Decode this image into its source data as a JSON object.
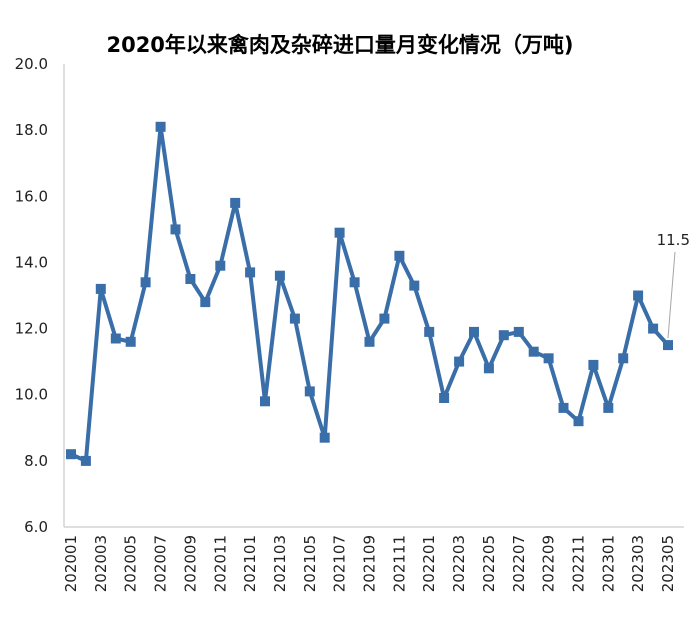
{
  "chart_data": {
    "type": "line",
    "title": "2020年以来禽肉及杂碎进口量月变化情况（万吨)",
    "xlabel": "",
    "ylabel": "",
    "ylim": [
      6.0,
      20.0
    ],
    "yticks": [
      "6.0",
      "8.0",
      "10.0",
      "12.0",
      "14.0",
      "16.0",
      "18.0",
      "20.0"
    ],
    "grid": false,
    "legend": "none",
    "color": "#3a6ea8",
    "marker": "square",
    "categories": [
      "202001",
      "202002",
      "202003",
      "202004",
      "202005",
      "202006",
      "202007",
      "202008",
      "202009",
      "202010",
      "202011",
      "202012",
      "202101",
      "202102",
      "202103",
      "202104",
      "202105",
      "202106",
      "202107",
      "202108",
      "202109",
      "202110",
      "202111",
      "202112",
      "202201",
      "202202",
      "202203",
      "202204",
      "202205",
      "202206",
      "202207",
      "202208",
      "202209",
      "202210",
      "202211",
      "202212",
      "202301",
      "202302",
      "202303",
      "202304",
      "202305"
    ],
    "tick_labels": [
      "202001",
      "",
      "202003",
      "",
      "202005",
      "",
      "202007",
      "",
      "202009",
      "",
      "202011",
      "",
      "202101",
      "",
      "202103",
      "",
      "202105",
      "",
      "202107",
      "",
      "202109",
      "",
      "202111",
      "",
      "202201",
      "",
      "202203",
      "",
      "202205",
      "",
      "202207",
      "",
      "202209",
      "",
      "202211",
      "",
      "202301",
      "",
      "202303",
      "",
      "202305"
    ],
    "series": [
      {
        "values": [
          8.2,
          8.0,
          13.2,
          11.7,
          11.6,
          13.4,
          18.1,
          15.0,
          13.5,
          12.8,
          13.9,
          15.8,
          13.7,
          9.8,
          13.6,
          12.3,
          10.1,
          8.7,
          14.9,
          13.4,
          11.6,
          12.3,
          14.2,
          13.3,
          11.9,
          9.9,
          11.0,
          11.9,
          10.8,
          11.8,
          11.9,
          11.3,
          11.1,
          9.6,
          9.2,
          10.9,
          9.6,
          11.1,
          13.0,
          12.0,
          11.5
        ]
      }
    ],
    "annotations": [
      {
        "category": "202305",
        "text": "11.5"
      }
    ]
  }
}
